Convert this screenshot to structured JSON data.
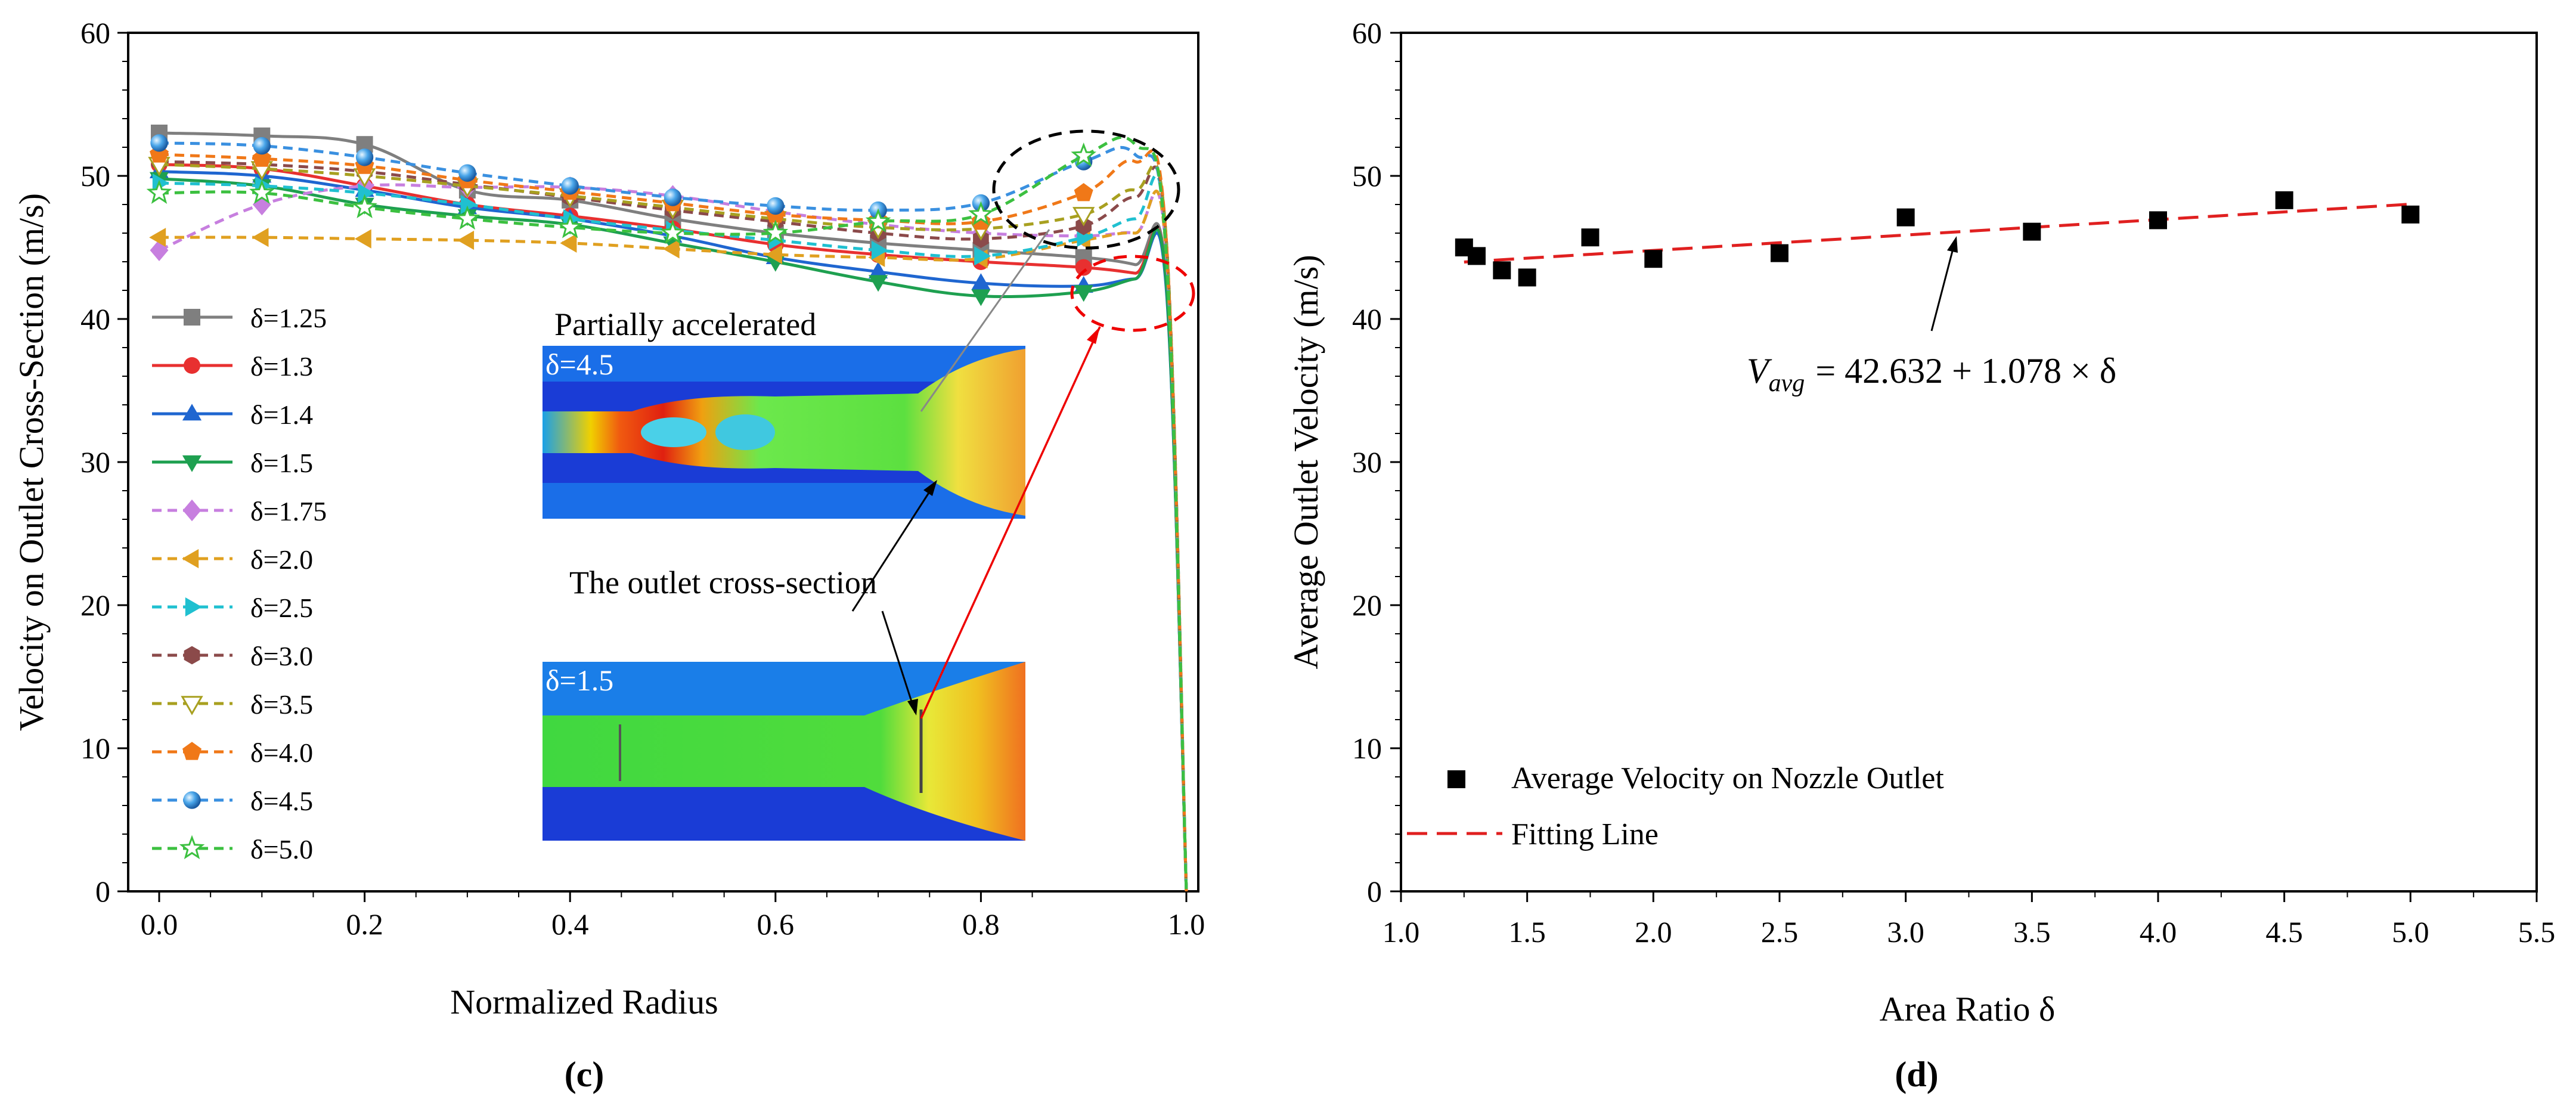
{
  "chart_data": [
    {
      "type": "line",
      "panel_label": "(c)",
      "xlabel": "Normalized Radius",
      "ylabel": "Velocity on Outlet Cross-Section (m/s)",
      "xlim": [
        0,
        1.0
      ],
      "ylim": [
        0,
        60
      ],
      "x_ticks": [
        "0.0",
        "0.2",
        "0.4",
        "0.6",
        "0.8",
        "1.0"
      ],
      "y_ticks": [
        "0",
        "10",
        "20",
        "30",
        "40",
        "50",
        "60"
      ],
      "x": [
        0.0,
        0.1,
        0.2,
        0.3,
        0.4,
        0.5,
        0.6,
        0.7,
        0.8,
        0.9,
        0.95,
        0.98,
        1.0
      ],
      "series": [
        {
          "name": "δ=1.25",
          "color": "#7f7f7f",
          "dash": "solid",
          "marker": "square",
          "values": [
            53.0,
            52.8,
            52.2,
            49.0,
            48.3,
            47.0,
            46.0,
            45.3,
            44.8,
            44.3,
            43.8,
            43.0,
            0
          ]
        },
        {
          "name": "δ=1.3",
          "color": "#e83030",
          "dash": "solid",
          "marker": "circle",
          "values": [
            50.8,
            50.5,
            49.3,
            48.0,
            47.2,
            46.3,
            45.2,
            44.5,
            44.0,
            43.6,
            43.2,
            42.8,
            0
          ]
        },
        {
          "name": "δ=1.4",
          "color": "#1f66d0",
          "dash": "solid",
          "marker": "triangle-up",
          "values": [
            50.3,
            50.0,
            49.0,
            47.8,
            47.0,
            45.8,
            44.3,
            43.3,
            42.5,
            42.3,
            42.8,
            42.5,
            0
          ]
        },
        {
          "name": "δ=1.5",
          "color": "#1ea050",
          "dash": "solid",
          "marker": "triangle-down",
          "values": [
            49.8,
            49.3,
            48.0,
            47.2,
            46.6,
            45.3,
            44.0,
            42.6,
            41.6,
            41.9,
            42.8,
            42.8,
            0
          ]
        },
        {
          "name": "δ=1.75",
          "color": "#c77fdf",
          "dash": "dash",
          "marker": "diamond",
          "values": [
            44.8,
            48.0,
            49.3,
            49.2,
            49.2,
            48.6,
            47.5,
            46.6,
            46.0,
            45.8,
            46.0,
            45.0,
            0
          ]
        },
        {
          "name": "δ=2.0",
          "color": "#e0a020",
          "dash": "dash",
          "marker": "triangle-left",
          "values": [
            45.7,
            45.7,
            45.6,
            45.5,
            45.3,
            44.9,
            44.5,
            44.3,
            44.2,
            45.5,
            46.0,
            45.0,
            0
          ]
        },
        {
          "name": "δ=2.5",
          "color": "#20c0d0",
          "dash": "dash",
          "marker": "triangle-right",
          "values": [
            49.5,
            49.3,
            48.8,
            48.0,
            47.0,
            46.2,
            45.5,
            44.8,
            44.4,
            45.7,
            47.0,
            46.0,
            0
          ]
        },
        {
          "name": "δ=3.0",
          "color": "#8b4a4a",
          "dash": "dash",
          "marker": "hexagon",
          "values": [
            51.0,
            50.8,
            50.3,
            49.4,
            48.5,
            47.6,
            46.8,
            46.0,
            45.6,
            46.5,
            48.5,
            46.0,
            0
          ]
        },
        {
          "name": "δ=3.5",
          "color": "#a8a020",
          "dash": "dash",
          "marker": "triangle-down-open",
          "values": [
            50.8,
            50.5,
            50.0,
            49.3,
            48.6,
            47.8,
            47.0,
            46.4,
            46.3,
            47.3,
            49.0,
            46.0,
            0
          ]
        },
        {
          "name": "δ=4.0",
          "color": "#f07818",
          "dash": "dash",
          "marker": "pentagon",
          "values": [
            51.5,
            51.2,
            50.7,
            49.7,
            48.9,
            48.1,
            47.3,
            46.9,
            46.8,
            48.8,
            51.0,
            46.0,
            0
          ]
        },
        {
          "name": "δ=4.5",
          "color": "#3a90e0",
          "dash": "dash",
          "marker": "sphere",
          "values": [
            52.3,
            52.1,
            51.3,
            50.2,
            49.3,
            48.5,
            47.9,
            47.6,
            48.1,
            51.0,
            51.5,
            45.0,
            0
          ]
        },
        {
          "name": "δ=5.0",
          "color": "#3cc040",
          "dash": "dash",
          "marker": "star-open",
          "values": [
            48.8,
            48.8,
            47.8,
            47.0,
            46.4,
            46.0,
            46.0,
            46.8,
            47.3,
            51.4,
            52.2,
            45.0,
            0
          ]
        }
      ],
      "annotations": {
        "label_partial": "Partially accelerated",
        "label_outlet": "The outlet cross-section",
        "inset_top_label": "δ=4.5",
        "inset_bottom_label": "δ=1.5"
      }
    },
    {
      "type": "scatter",
      "panel_label": "(d)",
      "xlabel": "Area Ratio δ",
      "ylabel": "Average Outlet Velocity (m/s)",
      "xlim": [
        1.0,
        5.5
      ],
      "ylim": [
        0,
        60
      ],
      "x_ticks": [
        "1.0",
        "1.5",
        "2.0",
        "2.5",
        "3.0",
        "3.5",
        "4.0",
        "4.5",
        "5.0",
        "5.5"
      ],
      "y_ticks": [
        "0",
        "10",
        "20",
        "30",
        "40",
        "50",
        "60"
      ],
      "points_name": "Average Velocity on Nozzle Outlet",
      "x": [
        1.25,
        1.3,
        1.4,
        1.5,
        1.75,
        2.0,
        2.5,
        3.0,
        3.5,
        4.0,
        4.5,
        5.0
      ],
      "y": [
        45.0,
        44.4,
        43.4,
        42.9,
        45.7,
        44.2,
        44.6,
        47.1,
        46.1,
        46.9,
        48.3,
        47.3
      ],
      "fit": {
        "name": "Fitting Line",
        "intercept": 42.632,
        "slope": 1.078,
        "x_range": [
          1.25,
          5.0
        ],
        "color": "#e02020"
      },
      "equation": {
        "lhs": "V",
        "subscript": "avg",
        "rhs": "= 42.632 + 1.078 × δ"
      }
    }
  ]
}
